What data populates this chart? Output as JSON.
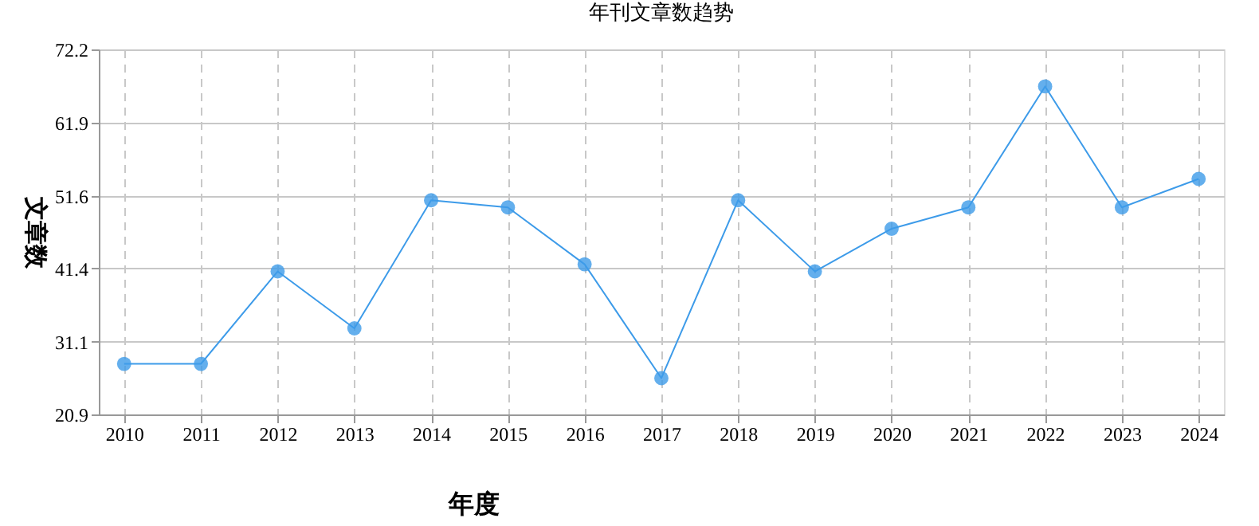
{
  "chart_data": {
    "type": "line",
    "title": "年刊文章数趋势",
    "xlabel": "年度",
    "ylabel": "文章数",
    "categories": [
      "2010",
      "2011",
      "2012",
      "2013",
      "2014",
      "2015",
      "2016",
      "2017",
      "2018",
      "2019",
      "2020",
      "2021",
      "2022",
      "2023",
      "2024"
    ],
    "series": [
      {
        "color": "#3d9be9",
        "values": [
          28,
          28,
          41,
          33,
          51,
          50,
          42,
          26,
          51,
          41,
          47,
          50,
          67,
          50,
          54
        ]
      }
    ],
    "ylim": [
      20.9,
      72.2
    ],
    "yticks": [
      20.9,
      31.1,
      41.4,
      51.6,
      61.9,
      72.2
    ],
    "grid": true,
    "marker": "circle",
    "line_style": "solid",
    "legend": false
  }
}
